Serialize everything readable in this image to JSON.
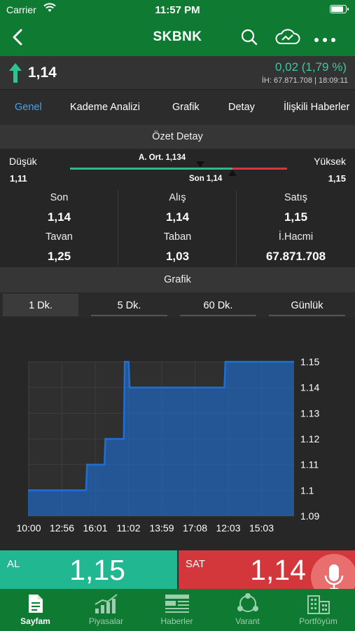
{
  "status": {
    "carrier": "Carrier",
    "time": "11:57 PM"
  },
  "nav": {
    "title": "SKBNK"
  },
  "price": {
    "last": "1,14",
    "change": "0,02 (1,79 %)",
    "volume_info": "İH:  67.871.708 | 18:09:11"
  },
  "tabs": [
    "Genel",
    "Kademe Analizi",
    "Grafik",
    "Detay",
    "İlişkili Haberler"
  ],
  "summary": {
    "header": "Özet Detay",
    "low_label": "Düşük",
    "low": "1,11",
    "high_label": "Yüksek",
    "high": "1,15",
    "avg_label": "A. Ort. 1,134",
    "last_label": "Son 1,14",
    "cells": [
      {
        "label": "Son",
        "value": "1,14"
      },
      {
        "label": "Alış",
        "value": "1,14"
      },
      {
        "label": "Satış",
        "value": "1,15"
      },
      {
        "label": "Tavan",
        "value": "1,25"
      },
      {
        "label": "Taban",
        "value": "1,03"
      },
      {
        "label": "İ.Hacmi",
        "value": "67.871.708"
      }
    ]
  },
  "chart_section": {
    "header": "Grafik",
    "intervals": [
      "1 Dk.",
      "5 Dk.",
      "60 Dk.",
      "Günlük"
    ],
    "active_interval": "1 Dk."
  },
  "chart_data": {
    "type": "area",
    "x_ticks": [
      "10:00",
      "12:56",
      "16:01",
      "11:02",
      "13:59",
      "17:08",
      "12:03",
      "15:03"
    ],
    "y_ticks": [
      "1.15",
      "1.14",
      "1.13",
      "1.12",
      "1.11",
      "1.1",
      "1.09"
    ],
    "ylim": [
      1.09,
      1.15
    ],
    "grid": true,
    "values": [
      1.1,
      1.1,
      1.1,
      1.1,
      1.1,
      1.1,
      1.1,
      1.1,
      1.1,
      1.1,
      1.1,
      1.1,
      1.1,
      1.1,
      1.1,
      1.1,
      1.1,
      1.1,
      1.1,
      1.1,
      1.1,
      1.1,
      1.1,
      1.1,
      1.1,
      1.1,
      1.1,
      1.1,
      1.1,
      1.1,
      1.1,
      1.1,
      1.1,
      1.1,
      1.1,
      1.1,
      1.1,
      1.1,
      1.1,
      1.1,
      1.1,
      1.1,
      1.1,
      1.1,
      1.1,
      1.1,
      1.1,
      1.1,
      1.1,
      1.1,
      1.1,
      1.1,
      1.1,
      1.1,
      1.1,
      1.1,
      1.1,
      1.1,
      1.1,
      1.1,
      1.1,
      1.11,
      1.11,
      1.11,
      1.11,
      1.11,
      1.11,
      1.11,
      1.11,
      1.11,
      1.11,
      1.11,
      1.11,
      1.11,
      1.11,
      1.11,
      1.11,
      1.11,
      1.11,
      1.11,
      1.12,
      1.12,
      1.12,
      1.12,
      1.12,
      1.12,
      1.12,
      1.12,
      1.12,
      1.12,
      1.12,
      1.12,
      1.12,
      1.12,
      1.12,
      1.12,
      1.12,
      1.12,
      1.12,
      1.12,
      1.15,
      1.15,
      1.15,
      1.15,
      1.15,
      1.14,
      1.14,
      1.14,
      1.14,
      1.14,
      1.14,
      1.14,
      1.14,
      1.14,
      1.14,
      1.14,
      1.14,
      1.14,
      1.14,
      1.14,
      1.14,
      1.14,
      1.14,
      1.14,
      1.14,
      1.14,
      1.14,
      1.14,
      1.14,
      1.14,
      1.14,
      1.14,
      1.14,
      1.14,
      1.14,
      1.14,
      1.14,
      1.14,
      1.14,
      1.14,
      1.14,
      1.14,
      1.14,
      1.14,
      1.14,
      1.14,
      1.14,
      1.14,
      1.14,
      1.14,
      1.14,
      1.14,
      1.14,
      1.14,
      1.14,
      1.14,
      1.14,
      1.14,
      1.14,
      1.14,
      1.14,
      1.14,
      1.14,
      1.14,
      1.14,
      1.14,
      1.14,
      1.14,
      1.14,
      1.14,
      1.14,
      1.14,
      1.14,
      1.14,
      1.14,
      1.14,
      1.14,
      1.14,
      1.14,
      1.14,
      1.14,
      1.14,
      1.14,
      1.14,
      1.14,
      1.14,
      1.14,
      1.14,
      1.14,
      1.14,
      1.14,
      1.14,
      1.14,
      1.14,
      1.14,
      1.14,
      1.14,
      1.14,
      1.14,
      1.14,
      1.14,
      1.14,
      1.14,
      1.14,
      1.15,
      1.15,
      1.15,
      1.15,
      1.15,
      1.15,
      1.15,
      1.15,
      1.15,
      1.15,
      1.15,
      1.15,
      1.15,
      1.15,
      1.15,
      1.15,
      1.15,
      1.15,
      1.15,
      1.15,
      1.15,
      1.15,
      1.15,
      1.15,
      1.15,
      1.15,
      1.15,
      1.15,
      1.15,
      1.15,
      1.15,
      1.15,
      1.15,
      1.15,
      1.15,
      1.15,
      1.15,
      1.15,
      1.15,
      1.15,
      1.15,
      1.15,
      1.15,
      1.15,
      1.15,
      1.15,
      1.15,
      1.15,
      1.15,
      1.15,
      1.15,
      1.15,
      1.15,
      1.15,
      1.15,
      1.15,
      1.15,
      1.15,
      1.15,
      1.15,
      1.15,
      1.15,
      1.15,
      1.15,
      1.15,
      1.15,
      1.15,
      1.15,
      1.15,
      1.15,
      1.15,
      1.15
    ],
    "color": "#1e6fd6"
  },
  "trade": {
    "buy_label": "AL",
    "buy_price": "1,15",
    "sell_label": "SAT",
    "sell_price": "1,14"
  },
  "tabbar": [
    {
      "label": "Sayfam",
      "icon": "document-icon",
      "active": true
    },
    {
      "label": "Piyasalar",
      "icon": "bar-chart-icon",
      "active": false
    },
    {
      "label": "Haberler",
      "icon": "news-icon",
      "active": false
    },
    {
      "label": "Varant",
      "icon": "share-nodes-icon",
      "active": false
    },
    {
      "label": "Portföyüm",
      "icon": "buildings-icon",
      "active": false
    }
  ],
  "colors": {
    "brand_green": "#0e7a32",
    "buy": "#21b791",
    "sell": "#d3363b",
    "up": "#3cc8a0",
    "accent": "#4aa3e6"
  }
}
